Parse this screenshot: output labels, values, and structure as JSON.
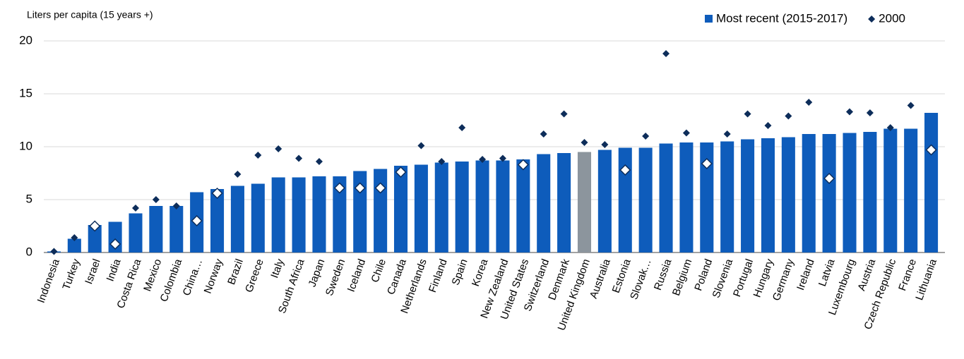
{
  "chart_data": {
    "type": "bar",
    "y_label": "Liters per capita (15 years +)",
    "categories": [
      "Indonesia",
      "Turkey",
      "Israel",
      "India",
      "Costa Rica",
      "Mexico",
      "Colombia",
      "China…",
      "Norway",
      "Brazil",
      "Greece",
      "Italy",
      "South Africa",
      "Japan",
      "Sweden",
      "Iceland",
      "Chile",
      "Canada",
      "Netherlands",
      "Finland",
      "Spain",
      "Korea",
      "New Zealand",
      "United States",
      "Switzerland",
      "Denmark",
      "United Kingdom",
      "Australia",
      "Estonia",
      "Slovak…",
      "Russia",
      "Belgium",
      "Poland",
      "Slovenia",
      "Portugal",
      "Hungary",
      "Germany",
      "Ireland",
      "Latvia",
      "Luxembourg",
      "Austria",
      "Czech Republic",
      "France",
      "Lithuania"
    ],
    "series": [
      {
        "name": "Most recent (2015-2017)",
        "type": "bar",
        "color": "#0e5cbb",
        "colors": [
          "#0e5cbb",
          "#0e5cbb",
          "#0e5cbb",
          "#0e5cbb",
          "#0e5cbb",
          "#0e5cbb",
          "#0e5cbb",
          "#0e5cbb",
          "#0e5cbb",
          "#0e5cbb",
          "#0e5cbb",
          "#0e5cbb",
          "#0e5cbb",
          "#0e5cbb",
          "#0e5cbb",
          "#0e5cbb",
          "#0e5cbb",
          "#0e5cbb",
          "#0e5cbb",
          "#0e5cbb",
          "#0e5cbb",
          "#0e5cbb",
          "#0e5cbb",
          "#0e5cbb",
          "#0e5cbb",
          "#0e5cbb",
          "#8c959d",
          "#0e5cbb",
          "#0e5cbb",
          "#0e5cbb",
          "#0e5cbb",
          "#0e5cbb",
          "#0e5cbb",
          "#0e5cbb",
          "#0e5cbb",
          "#0e5cbb",
          "#0e5cbb",
          "#0e5cbb",
          "#0e5cbb",
          "#0e5cbb",
          "#0e5cbb",
          "#0e5cbb",
          "#0e5cbb",
          "#0e5cbb"
        ],
        "values": [
          0.1,
          1.3,
          2.6,
          2.9,
          3.7,
          4.4,
          4.4,
          5.7,
          6.0,
          6.3,
          6.5,
          7.1,
          7.1,
          7.2,
          7.2,
          7.7,
          7.9,
          8.2,
          8.3,
          8.5,
          8.6,
          8.7,
          8.7,
          8.8,
          9.3,
          9.4,
          9.5,
          9.7,
          9.9,
          9.9,
          10.3,
          10.4,
          10.4,
          10.5,
          10.7,
          10.8,
          10.9,
          11.2,
          11.2,
          11.3,
          11.4,
          11.7,
          11.7,
          13.2
        ]
      },
      {
        "name": "2000",
        "type": "diamond",
        "color": "#0d2d5a",
        "values": [
          0.1,
          1.4,
          2.5,
          0.8,
          4.2,
          5.0,
          4.4,
          3.0,
          5.6,
          7.4,
          9.2,
          9.8,
          8.9,
          8.6,
          6.1,
          6.1,
          6.1,
          7.6,
          10.1,
          8.6,
          11.8,
          8.8,
          8.9,
          8.3,
          11.2,
          13.1,
          10.4,
          10.2,
          7.8,
          11.0,
          18.8,
          11.3,
          8.4,
          11.2,
          13.1,
          12.0,
          12.9,
          14.2,
          7.0,
          13.3,
          13.2,
          11.8,
          13.9,
          9.7
        ]
      }
    ],
    "ylim": [
      0,
      20
    ],
    "yticks": [
      0,
      5,
      10,
      15,
      20
    ],
    "grid": true,
    "legend": "top-right"
  }
}
